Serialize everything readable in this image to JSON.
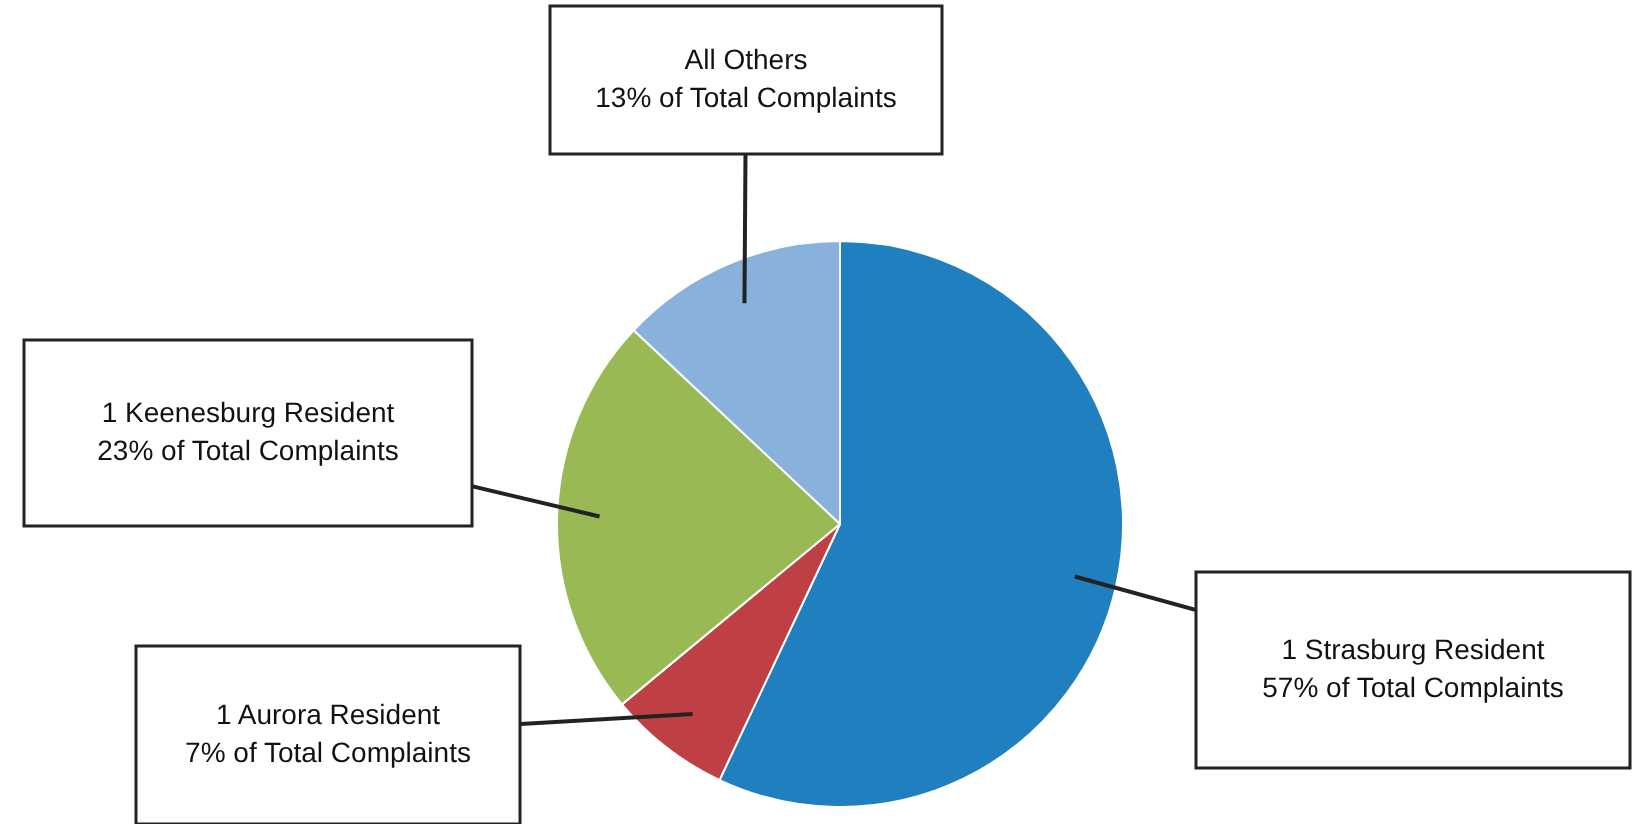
{
  "chart_data": {
    "type": "pie",
    "categories": [
      "1 Strasburg Resident",
      "1 Aurora Resident",
      "1 Keenesburg Resident",
      "All Others"
    ],
    "values": [
      57,
      7,
      23,
      13
    ],
    "colors": [
      "#1f7fbf",
      "#be4045",
      "#98b954",
      "#88b1db"
    ],
    "value_labels": [
      "57% of Total Complaints",
      "7% of Total Complaints",
      "23% of Total Complaints",
      "13% of Total Complaints"
    ],
    "legend": false
  }
}
